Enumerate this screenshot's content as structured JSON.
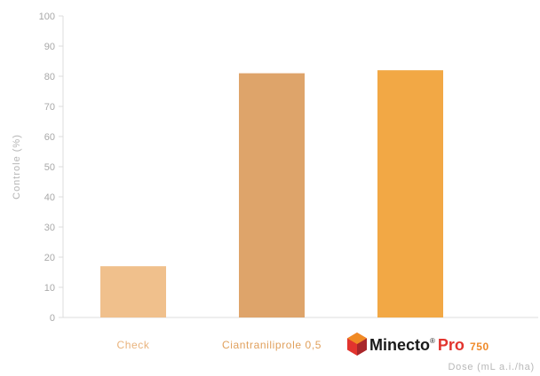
{
  "chart_data": {
    "type": "bar",
    "categories": [
      "Check",
      "Ciantraniliprole 0,5",
      "Minecto Pro 750"
    ],
    "values": [
      17,
      81,
      82
    ],
    "bar_colors": [
      "#f0c08c",
      "#dea46a",
      "#f2a845"
    ],
    "label_colors": [
      "#e9b37c",
      "#e0a05c",
      "#ef8a2a"
    ],
    "ylabel": "Controle (%)",
    "xlabel": "Dose (mL a.i./ha)",
    "ylim": [
      0,
      100
    ],
    "yticks": [
      0,
      10,
      20,
      30,
      40,
      50,
      60,
      70,
      80,
      90,
      100
    ],
    "grid": false,
    "brand": {
      "name": "Minecto",
      "registered": "®",
      "suffix": "Pro",
      "dose": "750",
      "logo_icon": "hexagon-cube-logo",
      "colors": {
        "red": "#e2342e",
        "dark_red": "#a8262a",
        "orange": "#f08a24"
      }
    }
  }
}
